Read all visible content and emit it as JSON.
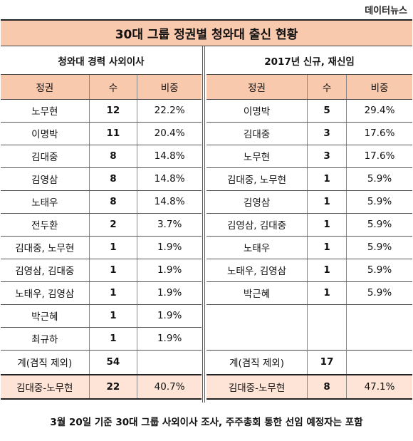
{
  "brand": "데이터뉴스",
  "title": "30대 그룹 정권별 청와대 출신 현황",
  "left": {
    "section_title": "청와대 경력 사외이사",
    "headers": [
      "정권",
      "수",
      "비중"
    ],
    "rows": [
      [
        "노무현",
        "12",
        "22.2%"
      ],
      [
        "이명박",
        "11",
        "20.4%"
      ],
      [
        "김대중",
        "8",
        "14.8%"
      ],
      [
        "김영삼",
        "8",
        "14.8%"
      ],
      [
        "노태우",
        "8",
        "14.8%"
      ],
      [
        "전두환",
        "2",
        "3.7%"
      ],
      [
        "김대중, 노무현",
        "1",
        "1.9%"
      ],
      [
        "김영삼, 김대중",
        "1",
        "1.9%"
      ],
      [
        "노태우, 김영삼",
        "1",
        "1.9%"
      ],
      [
        "박근혜",
        "1",
        "1.9%"
      ],
      [
        "최규하",
        "1",
        "1.9%"
      ]
    ],
    "total": [
      "계(겸직 제외)",
      "54",
      ""
    ],
    "sum": [
      "김대중-노무현",
      "22",
      "40.7%"
    ]
  },
  "right": {
    "section_title": "2017년 신규, 재신임",
    "headers": [
      "정권",
      "수",
      "비중"
    ],
    "rows": [
      [
        "이명박",
        "5",
        "29.4%"
      ],
      [
        "김대중",
        "3",
        "17.6%"
      ],
      [
        "노무현",
        "3",
        "17.6%"
      ],
      [
        "김대중, 노무현",
        "1",
        "5.9%"
      ],
      [
        "김영삼",
        "1",
        "5.9%"
      ],
      [
        "김영삼, 김대중",
        "1",
        "5.9%"
      ],
      [
        "노태우",
        "1",
        "5.9%"
      ],
      [
        "노태우, 김영삼",
        "1",
        "5.9%"
      ],
      [
        "박근혜",
        "1",
        "5.9%"
      ],
      [
        "",
        "",
        ""
      ],
      [
        "",
        "",
        ""
      ]
    ],
    "total": [
      "계(겸직 제외)",
      "17",
      ""
    ],
    "sum": [
      "김대중-노무현",
      "8",
      "47.1%"
    ]
  },
  "footer": "3월 20일 기준 30대 그룹 사외이사 조사, 주주총회 통한 선임 예정자는 포함"
}
